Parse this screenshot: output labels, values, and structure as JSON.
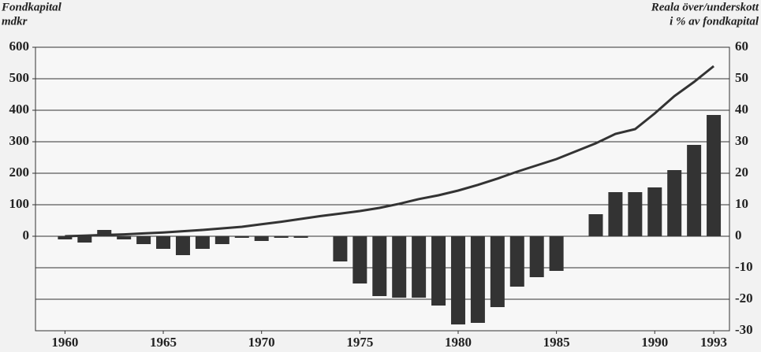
{
  "chart_data": {
    "type": "bar-line",
    "ylabel": [
      "Fondkapital",
      "mdkr"
    ],
    "y2label": [
      "Reala över/underskott",
      "i % av fondkapital"
    ],
    "x": [
      1960,
      1961,
      1962,
      1963,
      1964,
      1965,
      1966,
      1967,
      1968,
      1969,
      1970,
      1971,
      1972,
      1973,
      1974,
      1975,
      1976,
      1977,
      1978,
      1979,
      1980,
      1981,
      1982,
      1983,
      1984,
      1985,
      1986,
      1987,
      1988,
      1989,
      1990,
      1991,
      1992,
      1993
    ],
    "xlim": [
      1958.5,
      1993.8
    ],
    "xticks": [
      1960,
      1965,
      1970,
      1975,
      1980,
      1985,
      1990,
      1993
    ],
    "ylim": [
      -300,
      600
    ],
    "yticks": [
      0,
      100,
      200,
      300,
      400,
      500,
      600
    ],
    "y2lim": [
      -30,
      60
    ],
    "y2ticks": [
      -30,
      -20,
      -10,
      0,
      10,
      20,
      30,
      40,
      50,
      60
    ],
    "grid": true,
    "series": [
      {
        "type": "bar",
        "axis": "y2",
        "color": "#333333",
        "values": [
          -1,
          -2,
          2,
          -1,
          -2.5,
          -4,
          -6,
          -4,
          -2.5,
          -0.5,
          -1.5,
          -0.5,
          -0.5,
          0,
          -8,
          -15,
          -19,
          -19.5,
          -19.5,
          -22,
          -28,
          -27.5,
          -22.5,
          -16,
          -13,
          -11,
          0,
          7,
          14,
          14,
          15.5,
          21,
          29,
          38.5
        ]
      },
      {
        "type": "line",
        "axis": "y",
        "color": "#333333",
        "values": [
          0,
          2,
          4,
          6,
          9,
          12,
          16,
          20,
          25,
          30,
          38,
          46,
          55,
          64,
          72,
          80,
          90,
          103,
          118,
          130,
          145,
          163,
          183,
          205,
          225,
          245,
          270,
          295,
          325,
          340,
          390,
          445,
          490,
          540
        ]
      }
    ]
  }
}
